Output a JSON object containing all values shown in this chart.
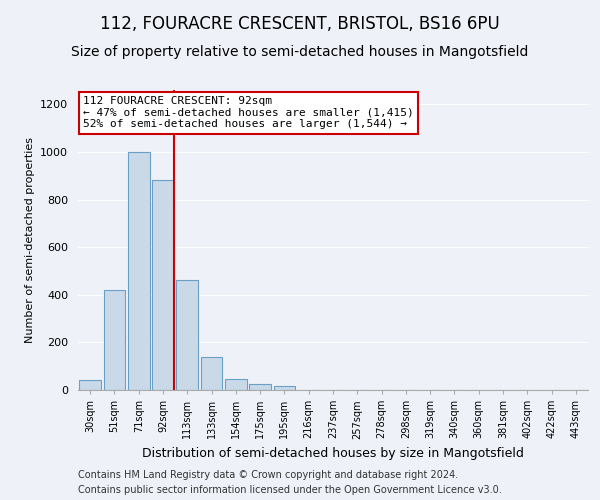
{
  "title1": "112, FOURACRE CRESCENT, BRISTOL, BS16 6PU",
  "title2": "Size of property relative to semi-detached houses in Mangotsfield",
  "xlabel": "Distribution of semi-detached houses by size in Mangotsfield",
  "ylabel": "Number of semi-detached properties",
  "categories": [
    "30sqm",
    "51sqm",
    "71sqm",
    "92sqm",
    "113sqm",
    "133sqm",
    "154sqm",
    "175sqm",
    "195sqm",
    "216sqm",
    "237sqm",
    "257sqm",
    "278sqm",
    "298sqm",
    "319sqm",
    "340sqm",
    "360sqm",
    "381sqm",
    "402sqm",
    "422sqm",
    "443sqm"
  ],
  "values": [
    40,
    420,
    1000,
    880,
    460,
    140,
    45,
    25,
    15,
    0,
    0,
    0,
    0,
    0,
    0,
    0,
    0,
    0,
    0,
    0,
    0
  ],
  "bar_color": "#c9d9e8",
  "bar_edge_color": "#6aa0c7",
  "red_line_index": 3,
  "annotation_line1": "112 FOURACRE CRESCENT: 92sqm",
  "annotation_line2": "← 47% of semi-detached houses are smaller (1,415)",
  "annotation_line3": "52% of semi-detached houses are larger (1,544) →",
  "annotation_box_color": "#ffffff",
  "annotation_box_edge_color": "#cc0000",
  "ylim": [
    0,
    1260
  ],
  "yticks": [
    0,
    200,
    400,
    600,
    800,
    1000,
    1200
  ],
  "footer1": "Contains HM Land Registry data © Crown copyright and database right 2024.",
  "footer2": "Contains public sector information licensed under the Open Government Licence v3.0.",
  "background_color": "#eef2f8",
  "grid_color": "#ffffff",
  "title1_fontsize": 12,
  "title2_fontsize": 10,
  "xlabel_fontsize": 9,
  "ylabel_fontsize": 8,
  "tick_fontsize": 7,
  "footer_fontsize": 7,
  "annotation_fontsize": 8
}
